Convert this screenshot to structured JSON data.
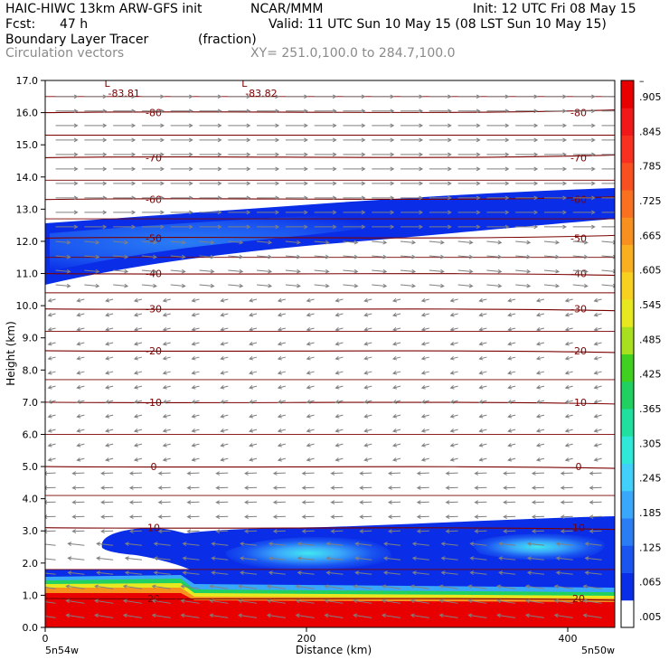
{
  "header": {
    "model": "HAIC-HIWC 13km ARW-GFS init",
    "org": "NCAR/MMM",
    "init": "Init: 12 UTC Fri 08 May 15",
    "fcst_label": "Fcst:",
    "fcst_value": "47 h",
    "valid": "Valid: 11 UTC Sun 10 May 15 (08 LST Sun 10 May 15)",
    "field": "Boundary Layer Tracer",
    "units": "(fraction)",
    "vectors": "Circulation vectors",
    "xy": "XY= 251.0,100.0 to 284.7,100.0"
  },
  "colors": {
    "contour": "#7a0000",
    "vector": "#808080",
    "palette": [
      "#ffffff",
      "#0a2ee8",
      "#1a55f0",
      "#2a7df5",
      "#3aa8fa",
      "#40d0fa",
      "#30e8d8",
      "#20e0a0",
      "#20d060",
      "#40d020",
      "#a8e020",
      "#e8e820",
      "#f8d020",
      "#f8b020",
      "#f89020",
      "#f87020",
      "#f85020",
      "#f83020",
      "#f01818",
      "#e80000"
    ]
  },
  "chart_data": {
    "type": "heatmap",
    "xlabel": "Distance (km)",
    "ylabel": "Height (km)",
    "xlim": [
      0,
      436
    ],
    "ylim": [
      0,
      17
    ],
    "xticks": [
      "0",
      "200",
      "400"
    ],
    "yticks": [
      "0.0",
      "1.0",
      "2.0",
      "3.0",
      "4.0",
      "5.0",
      "6.0",
      "7.0",
      "8.0",
      "9.0",
      "10.0",
      "11.0",
      "12.0",
      "13.0",
      "14.0",
      "15.0",
      "16.0",
      "17.0"
    ],
    "x_endpoints": [
      "5n54w",
      "5n50w"
    ],
    "colorbar_ticks": [
      ".005",
      ".065",
      ".125",
      ".185",
      ".245",
      ".305",
      ".365",
      ".425",
      ".485",
      ".545",
      ".605",
      ".665",
      ".725",
      ".785",
      ".845",
      ".905",
      "–"
    ],
    "temperature_contours": [
      {
        "label": "-80",
        "height_km": 16.0
      },
      {
        "label": "-70",
        "height_km": 14.6
      },
      {
        "label": "-60",
        "height_km": 13.3
      },
      {
        "label": "-50",
        "height_km": 12.1
      },
      {
        "label": "-40",
        "height_km": 11.0
      },
      {
        "label": "-30",
        "height_km": 9.9
      },
      {
        "label": "-20",
        "height_km": 8.6
      },
      {
        "label": "-10",
        "height_km": 7.0
      },
      {
        "label": "0",
        "height_km": 5.0
      },
      {
        "label": "10",
        "height_km": 3.1
      },
      {
        "label": "20",
        "height_km": 0.9
      }
    ],
    "low_pressure_labels": [
      {
        "symbol": "L",
        "value": "-83.81",
        "x_km": 55,
        "height_km": 16.8
      },
      {
        "symbol": "L",
        "value": "-83.82",
        "x_km": 160,
        "height_km": 16.8
      }
    ]
  }
}
